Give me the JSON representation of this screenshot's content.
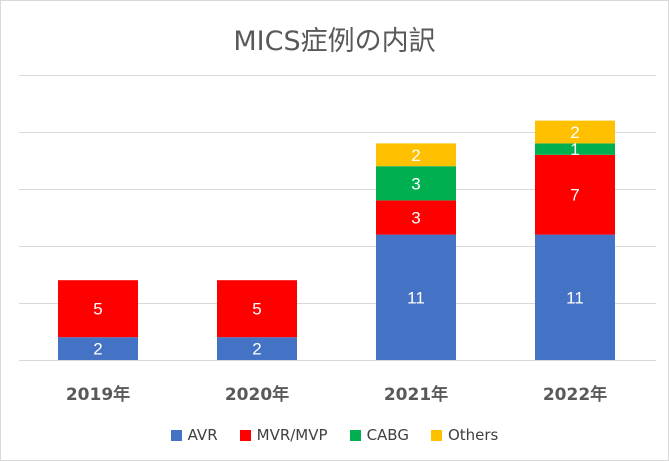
{
  "chart_data": {
    "type": "bar",
    "stacked": true,
    "title": "MICS症例の内訳",
    "categories": [
      "2019年",
      "2020年",
      "2021年",
      "2022年"
    ],
    "series": [
      {
        "name": "AVR",
        "color": "#4472c4",
        "label_color": "#ffffff",
        "values": [
          2,
          2,
          11,
          11
        ]
      },
      {
        "name": "MVR/MVP",
        "color": "#ff0000",
        "label_color": "#ffffff",
        "values": [
          5,
          5,
          3,
          7
        ]
      },
      {
        "name": "CABG",
        "color": "#00b050",
        "label_color": "#ffffff",
        "values": [
          0,
          0,
          3,
          1
        ]
      },
      {
        "name": "Others",
        "color": "#ffc000",
        "label_color": "#ffffff",
        "values": [
          0,
          0,
          2,
          2
        ]
      }
    ],
    "ylim": [
      0,
      25
    ],
    "gridlines": [
      0,
      5,
      10,
      15,
      20,
      25
    ],
    "y_tick_labels_visible": false,
    "grid": true,
    "legend_position": "bottom"
  }
}
